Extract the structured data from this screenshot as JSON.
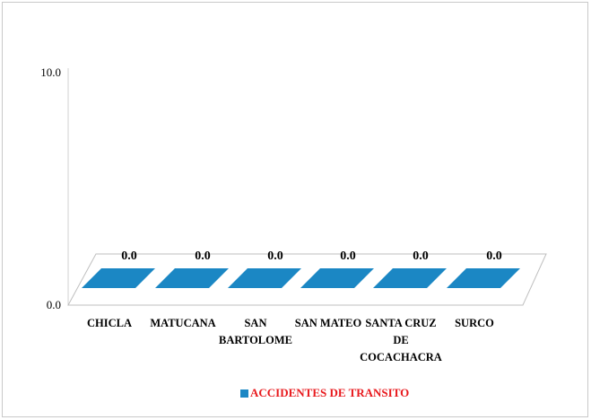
{
  "chart_data": {
    "type": "bar",
    "style": "3d",
    "categories": [
      [
        "CHICLA"
      ],
      [
        "MATUCANA"
      ],
      [
        "SAN",
        "BARTOLOME"
      ],
      [
        "SAN MATEO"
      ],
      [
        "SANTA CRUZ",
        "DE",
        "COCACHACRA"
      ],
      [
        "SURCO"
      ]
    ],
    "series": [
      {
        "name": "ACCIDENTES DE TRANSITO",
        "values": [
          0.0,
          0.0,
          0.0,
          0.0,
          0.0,
          0.0
        ],
        "data_labels": [
          "0.0",
          "0.0",
          "0.0",
          "0.0",
          "0.0",
          "0.0"
        ],
        "color": "#1b87c4"
      }
    ],
    "y_ticks": [
      "0.0",
      "10.0"
    ],
    "ylim": [
      0,
      10
    ],
    "legend_position": "bottom",
    "legend_text_color": "#e8191d",
    "grid": false
  }
}
